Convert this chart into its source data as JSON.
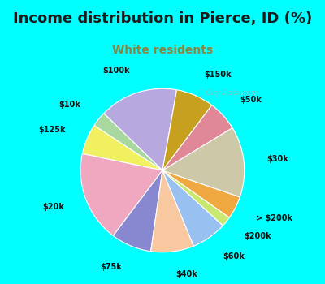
{
  "title": "Income distribution in Pierce, ID (%)",
  "subtitle": "White residents",
  "title_color": "#1a1a1a",
  "subtitle_color": "#888844",
  "bg_cyan": "#00ffff",
  "bg_chart": "#e0f5ee",
  "watermark": "ⓘ City-Data.com",
  "labels": [
    "$100k",
    "$10k",
    "$125k",
    "$20k",
    "$75k",
    "$40k",
    "$60k",
    "$200k",
    "> $200k",
    "$30k",
    "$50k",
    "$150k"
  ],
  "values": [
    15.5,
    3.0,
    6.0,
    18.0,
    8.0,
    8.5,
    7.0,
    2.0,
    4.5,
    14.0,
    6.0,
    7.5
  ],
  "colors": [
    "#b8a8e0",
    "#a8d8a0",
    "#f0f060",
    "#f0a8c0",
    "#8888d0",
    "#f8c8a0",
    "#98c0f0",
    "#c8e870",
    "#f0a840",
    "#ccc8a8",
    "#e08898",
    "#c8a020"
  ],
  "startangle": 80,
  "label_distance": 1.28,
  "figsize": [
    4.0,
    3.5
  ],
  "dpi": 100,
  "title_fontsize": 13,
  "subtitle_fontsize": 10,
  "label_fontsize": 7.0
}
